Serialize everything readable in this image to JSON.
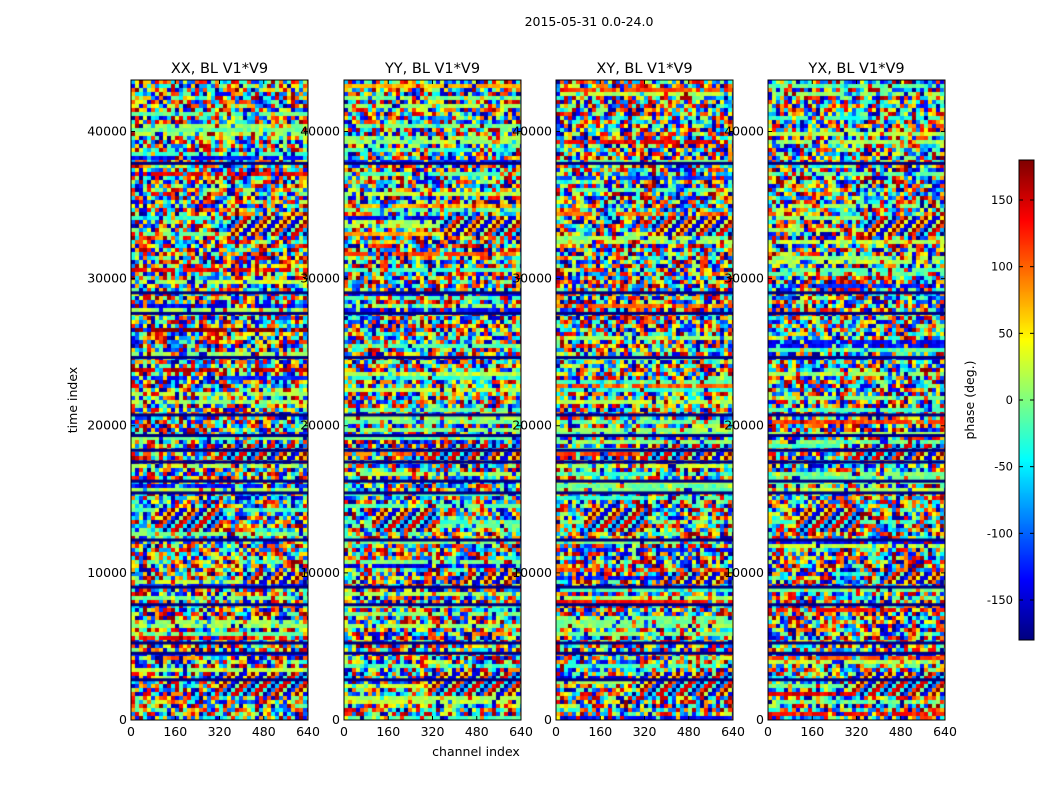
{
  "figure": {
    "suptitle": "2015-05-31 0.0-24.0",
    "xlabel": "channel index",
    "ylabel": "time index"
  },
  "chart_data": {
    "type": "heatmap",
    "title": "2015-05-31 0.0-24.0",
    "xlabel": "channel index",
    "ylabel": "time index",
    "panels": [
      {
        "title": "XX, BL V1*V9",
        "tint": 0.12
      },
      {
        "title": "YY, BL V1*V9",
        "tint": -0.08
      },
      {
        "title": "XY, BL V1*V9",
        "tint": 0.0
      },
      {
        "title": "YX, BL V1*V9",
        "tint": 0.0
      }
    ],
    "xlim": [
      0,
      640
    ],
    "ylim": [
      0,
      43500
    ],
    "xticks": [
      0,
      160,
      320,
      480,
      640
    ],
    "yticks": [
      0,
      10000,
      20000,
      30000,
      40000
    ],
    "colorbar": {
      "label": "phase (deg.)",
      "range": [
        -180,
        180
      ],
      "ticks": [
        -150,
        -100,
        -50,
        0,
        50,
        100,
        150
      ],
      "colormap": "jet",
      "colors": [
        "#00007f",
        "#0000ff",
        "#007fff",
        "#00ffff",
        "#7fff7f",
        "#ffff00",
        "#ff7f00",
        "#ff0000",
        "#7f0000"
      ]
    },
    "dark_bands": [
      37800,
      29000,
      27600,
      24600,
      20700,
      19300,
      18300,
      17500,
      16200,
      15400,
      12200,
      9000,
      7800,
      5200,
      4500,
      2700
    ],
    "coherent_regions": [
      {
        "t0": 33000,
        "t1": 34500,
        "c0": 340,
        "c1": 640
      },
      {
        "t0": 17800,
        "t1": 19000,
        "c0": 300,
        "c1": 640
      },
      {
        "t0": 13000,
        "t1": 14600,
        "c0": 100,
        "c1": 330
      },
      {
        "t0": 9300,
        "t1": 10300,
        "c0": 400,
        "c1": 640
      },
      {
        "t0": 1700,
        "t1": 3500,
        "c0": 300,
        "c1": 640
      }
    ]
  }
}
